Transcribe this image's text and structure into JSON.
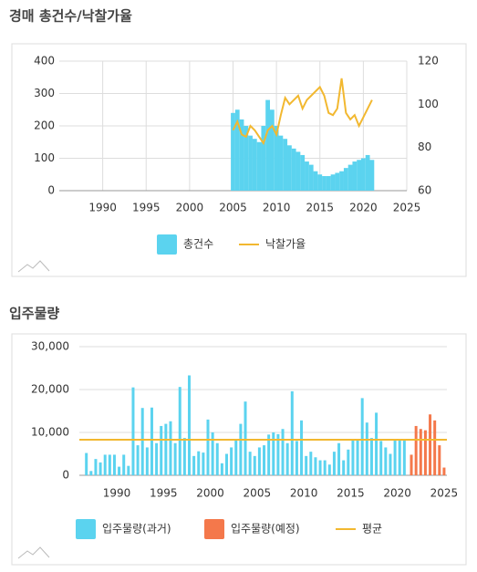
{
  "chart_data": [
    {
      "type": "combo",
      "title": "경매 총건수/낙찰가율",
      "x": [
        2005,
        2005.5,
        2006,
        2006.5,
        2007,
        2007.5,
        2008,
        2008.5,
        2009,
        2009.5,
        2010,
        2010.5,
        2011,
        2011.5,
        2012,
        2012.5,
        2013,
        2013.5,
        2014,
        2014.5,
        2015,
        2015.5,
        2016,
        2016.5,
        2017,
        2017.5,
        2018,
        2018.5,
        2019,
        2019.5,
        2020,
        2020.5,
        2021
      ],
      "series": [
        {
          "name": "총건수",
          "kind": "bar",
          "color": "#5bd3ef",
          "values": [
            240,
            250,
            220,
            200,
            170,
            160,
            150,
            200,
            280,
            250,
            200,
            170,
            160,
            140,
            130,
            120,
            110,
            90,
            80,
            60,
            50,
            45,
            45,
            50,
            55,
            60,
            70,
            80,
            90,
            95,
            100,
            110,
            95
          ]
        },
        {
          "name": "낙찰가율",
          "kind": "line",
          "axis": "y2",
          "color": "#f2b830",
          "values": [
            88,
            92,
            86,
            85,
            90,
            88,
            85,
            82,
            88,
            90,
            86,
            95,
            103,
            100,
            102,
            104,
            98,
            102,
            104,
            106,
            108,
            104,
            96,
            95,
            98,
            112,
            96,
            93,
            95,
            90,
            94,
            98,
            102
          ]
        }
      ],
      "xlim": [
        1985,
        2025
      ],
      "xticks": [
        1990,
        1995,
        2000,
        2005,
        2010,
        2015,
        2020,
        2025
      ],
      "ylim": [
        0,
        400
      ],
      "yticks": [
        0,
        100,
        200,
        300,
        400
      ],
      "y2lim": [
        60,
        120
      ],
      "y2ticks": [
        60,
        80,
        100,
        120
      ],
      "grid": true,
      "vgrid": true
    },
    {
      "type": "combo",
      "title": "입주물량",
      "series": [
        {
          "name": "입주물량(과거)",
          "kind": "bar",
          "color": "#5bd3ef",
          "x": [
            1986.75,
            1987.25,
            1987.75,
            1988.25,
            1988.75,
            1989.25,
            1989.75,
            1990.25,
            1990.75,
            1991.25,
            1991.75,
            1992.25,
            1992.75,
            1993.25,
            1993.75,
            1994.25,
            1994.75,
            1995.25,
            1995.75,
            1996.25,
            1996.75,
            1997.25,
            1997.75,
            1998.25,
            1998.75,
            1999.25,
            1999.75,
            2000.25,
            2000.75,
            2001.25,
            2001.75,
            2002.25,
            2002.75,
            2003.25,
            2003.75,
            2004.25,
            2004.75,
            2005.25,
            2005.75,
            2006.25,
            2006.75,
            2007.25,
            2007.75,
            2008.25,
            2008.75,
            2009.25,
            2009.75,
            2010.25,
            2010.75,
            2011.25,
            2011.75,
            2012.25,
            2012.75,
            2013.25,
            2013.75,
            2014.25,
            2014.75,
            2015.25,
            2015.75,
            2016.25,
            2016.75,
            2017.25,
            2017.75,
            2018.25,
            2018.75,
            2019.25,
            2019.75,
            2020.25,
            2020.75
          ],
          "values": [
            5200,
            1000,
            3800,
            3000,
            4800,
            4800,
            4800,
            2000,
            4800,
            2200,
            20500,
            7000,
            15700,
            6500,
            15800,
            7500,
            11500,
            12000,
            12600,
            7500,
            20600,
            8700,
            23300,
            4500,
            5600,
            5300,
            13000,
            10000,
            7500,
            2800,
            5000,
            6500,
            8500,
            12000,
            17200,
            5500,
            4500,
            6500,
            7000,
            9500,
            10000,
            9600,
            10800,
            7500,
            19600,
            8000,
            12800,
            4500,
            5500,
            4200,
            3500,
            3500,
            2500,
            5500,
            7500,
            3500,
            6000,
            8500,
            8200,
            18000,
            12300,
            8700,
            14600,
            8000,
            6500,
            5000,
            8500,
            8500,
            8300
          ]
        },
        {
          "name": "입주물량(예정)",
          "kind": "bar",
          "color": "#f4784b",
          "x": [
            2021.5,
            2022,
            2022.5,
            2023,
            2023.5,
            2024,
            2024.5,
            2025
          ],
          "values": [
            4800,
            11500,
            10800,
            10500,
            14200,
            12800,
            7000,
            1800
          ]
        },
        {
          "name": "평균",
          "kind": "hline",
          "color": "#f2b830",
          "value": 8300
        }
      ],
      "xlim": [
        1986,
        2025.3
      ],
      "xticks": [
        1990,
        1995,
        2000,
        2005,
        2010,
        2015,
        2020,
        2025
      ],
      "ylim": [
        0,
        30000
      ],
      "yticks": [
        0,
        {
          "value": 10000,
          "label": "10,000"
        },
        {
          "value": 20000,
          "label": "20,000"
        },
        {
          "value": 30000,
          "label": "30,000"
        }
      ],
      "grid": true,
      "vgrid": false
    }
  ]
}
